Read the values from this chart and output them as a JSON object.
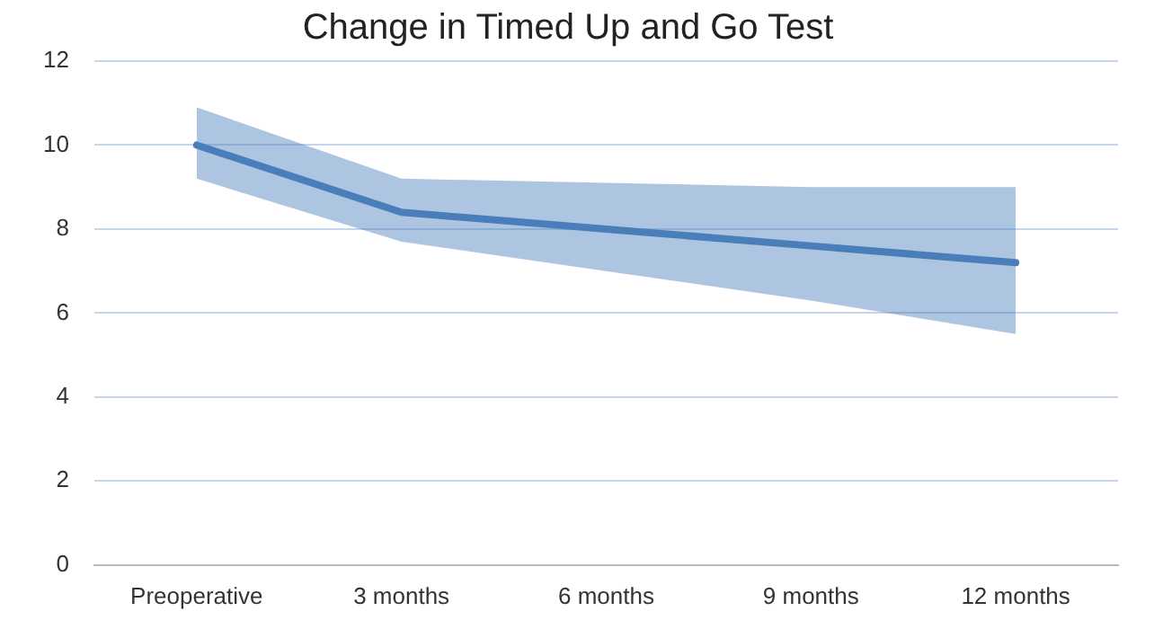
{
  "chart_data": {
    "type": "line",
    "title": "Change in Timed Up and Go Test",
    "categories": [
      "Preoperative",
      "3 months",
      "6 months",
      "9 months",
      "12 months"
    ],
    "series": [
      {
        "color": "#4a7ebb",
        "values": [
          10.0,
          8.4,
          8.0,
          7.6,
          7.2
        ],
        "lower": [
          9.2,
          7.7,
          7.0,
          6.3,
          5.5
        ],
        "upper": [
          10.9,
          9.2,
          9.1,
          9.0,
          9.0
        ]
      }
    ],
    "ylim": [
      0,
      12
    ],
    "yticks": [
      0,
      2,
      4,
      6,
      8,
      10,
      12
    ],
    "grid": "y",
    "legend": false,
    "marker": "none",
    "line_style": "solid"
  }
}
